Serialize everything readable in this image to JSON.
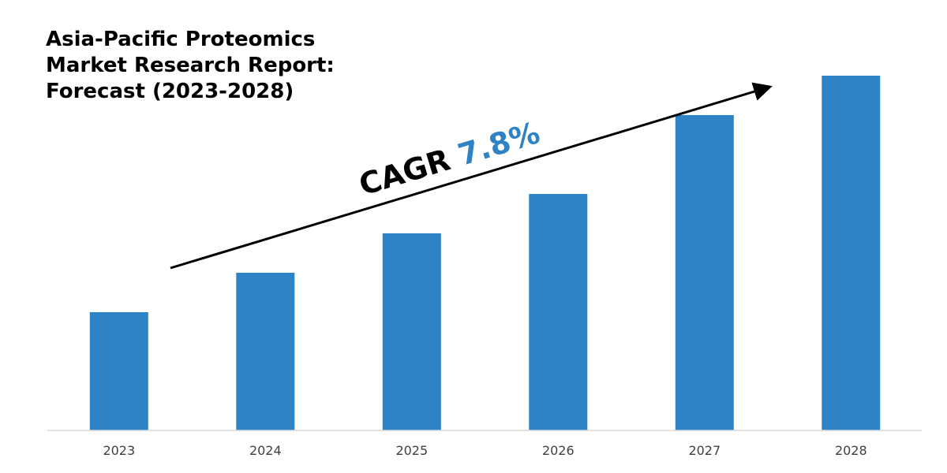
{
  "title_lines": [
    "Asia-Pacific Proteomics",
    "Market Research Report:",
    "Forecast (2023-2028)"
  ],
  "annotation": {
    "prefix": "CAGR ",
    "value": "7.8%",
    "text_color": "#000000",
    "value_color": "#2e83c6"
  },
  "chart_data": {
    "type": "bar",
    "title": "Asia-Pacific Proteomics Market Research Report: Forecast (2023-2028)",
    "categories": [
      "2023",
      "2024",
      "2025",
      "2026",
      "2027",
      "2028"
    ],
    "values": [
      30,
      40,
      50,
      60,
      80,
      90
    ],
    "ylim": [
      0,
      100
    ],
    "bar_color": "#2e83c6",
    "grid": false,
    "legend": "none",
    "y_axis_labels": "none"
  }
}
